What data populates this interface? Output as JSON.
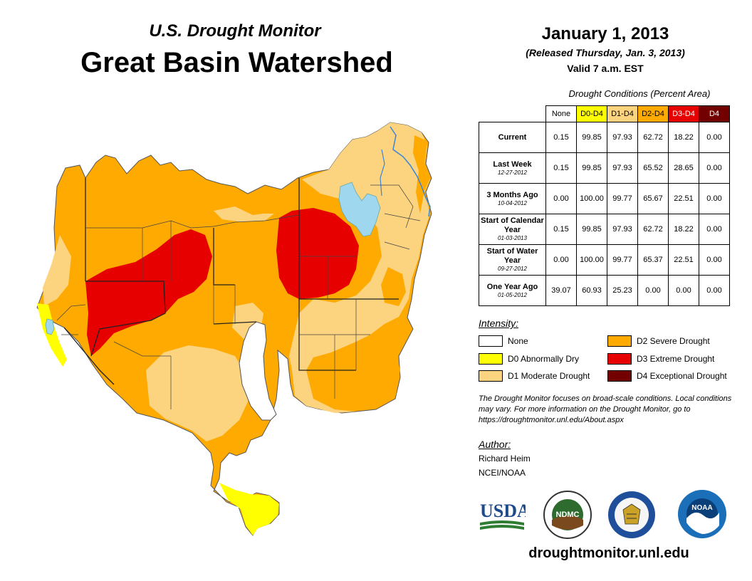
{
  "header": {
    "subtitle": "U.S. Drought Monitor",
    "title": "Great Basin Watershed",
    "date": "January 1, 2013",
    "released": "(Released Thursday, Jan. 3, 2013)",
    "valid": "Valid 7 a.m. EST"
  },
  "conditions": {
    "caption": "Drought Conditions (Percent Area)",
    "columns": [
      "None",
      "D0-D4",
      "D1-D4",
      "D2-D4",
      "D3-D4",
      "D4"
    ],
    "column_colors": [
      "#ffffff",
      "#ffff00",
      "#fcd37f",
      "#ffaa00",
      "#e60000",
      "#730000"
    ],
    "rows": [
      {
        "label": "Current",
        "date": "",
        "values": [
          "0.15",
          "99.85",
          "97.93",
          "62.72",
          "18.22",
          "0.00"
        ]
      },
      {
        "label": "Last Week",
        "date": "12-27-2012",
        "values": [
          "0.15",
          "99.85",
          "97.93",
          "65.52",
          "28.65",
          "0.00"
        ]
      },
      {
        "label": "3 Months Ago",
        "date": "10-04-2012",
        "values": [
          "0.00",
          "100.00",
          "99.77",
          "65.67",
          "22.51",
          "0.00"
        ]
      },
      {
        "label": "Start of Calendar Year",
        "date": "01-03-2013",
        "values": [
          "0.15",
          "99.85",
          "97.93",
          "62.72",
          "18.22",
          "0.00"
        ]
      },
      {
        "label": "Start of Water Year",
        "date": "09-27-2012",
        "values": [
          "0.00",
          "100.00",
          "99.77",
          "65.37",
          "22.51",
          "0.00"
        ]
      },
      {
        "label": "One Year Ago",
        "date": "01-05-2012",
        "values": [
          "39.07",
          "60.93",
          "25.23",
          "0.00",
          "0.00",
          "0.00"
        ]
      }
    ]
  },
  "legend": {
    "title": "Intensity:",
    "items": [
      {
        "label": "None",
        "color": "#ffffff"
      },
      {
        "label": "D0 Abnormally Dry",
        "color": "#ffff00"
      },
      {
        "label": "D1 Moderate Drought",
        "color": "#fcd37f"
      },
      {
        "label": "D2 Severe Drought",
        "color": "#ffaa00"
      },
      {
        "label": "D3 Extreme Drought",
        "color": "#e60000"
      },
      {
        "label": "D4 Exceptional Drought",
        "color": "#730000"
      }
    ]
  },
  "note": "The Drought Monitor focuses on broad-scale conditions. Local conditions may vary. For more information on the Drought Monitor, go to https://droughtmonitor.unl.edu/About.aspx",
  "author": {
    "label": "Author:",
    "name": "Richard Heim",
    "org": "NCEI/NOAA"
  },
  "logos": {
    "usda": "USDA",
    "ndmc": "NDMC",
    "noaa": "NOAA"
  },
  "url": "droughtmonitor.unl.edu",
  "colors": {
    "d0": "#ffff00",
    "d1": "#fcd37f",
    "d2": "#ffaa00",
    "d3": "#e60000",
    "water": "#9fd7ef"
  }
}
